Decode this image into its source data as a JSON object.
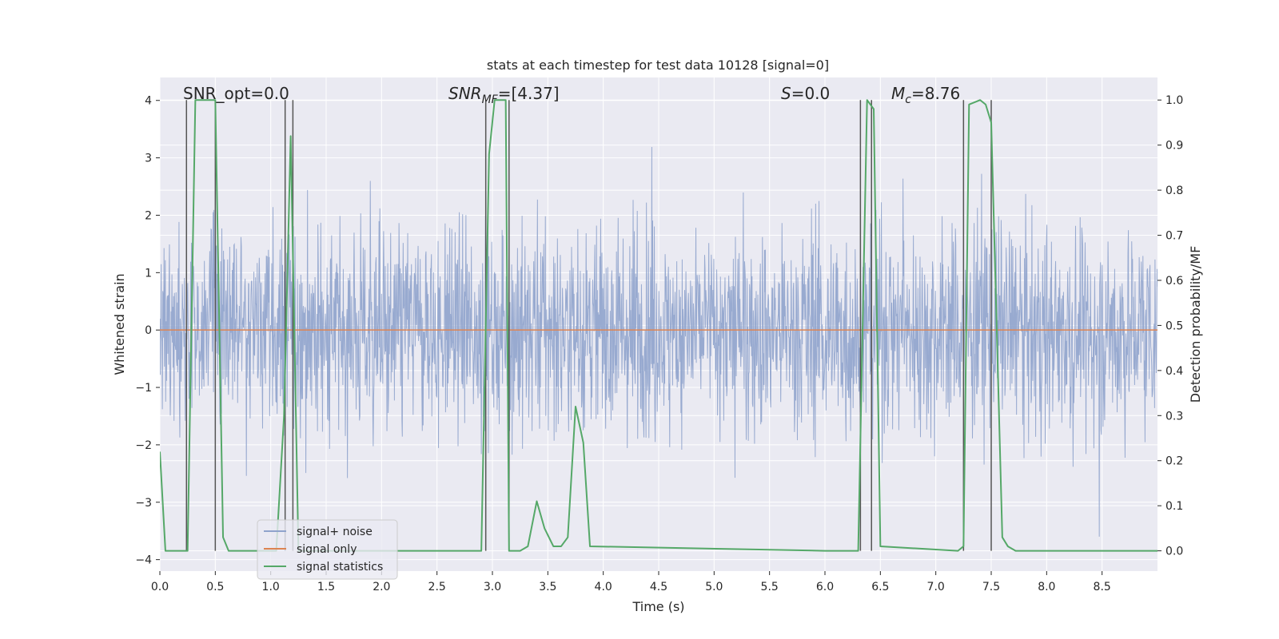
{
  "chart_data": {
    "type": "line",
    "title": "stats at each timestep for test data 10128 [signal=0]",
    "xlabel": "Time (s)",
    "ylabel": "Whitened strain",
    "y2label": "Detection probability/MF",
    "xlim": [
      0.0,
      9.0
    ],
    "ylim": [
      -4.2,
      4.4
    ],
    "y2lim": [
      -0.045,
      1.05
    ],
    "xticks": [
      "0.0",
      "0.5",
      "1.0",
      "1.5",
      "2.0",
      "2.5",
      "3.0",
      "3.5",
      "4.0",
      "4.5",
      "5.0",
      "5.5",
      "6.0",
      "6.5",
      "7.0",
      "7.5",
      "8.0",
      "8.5"
    ],
    "yticks": [
      "4",
      "3",
      "2",
      "1",
      "0",
      "−1",
      "−2",
      "−3",
      "−4"
    ],
    "y2ticks": [
      "1.0",
      "0.9",
      "0.8",
      "0.7",
      "0.6",
      "0.5",
      "0.4",
      "0.3",
      "0.2",
      "0.1",
      "0.0"
    ],
    "grid": true,
    "legend_position": "lower-left",
    "annotations": {
      "snr_opt": "SNR_opt=0.0",
      "snr_mf_base": "SNR",
      "snr_mf_sub": "MF",
      "snr_mf_value": "=[4.37]",
      "s_symbol": "S",
      "s_value": "=0.0",
      "mc_base": "M",
      "mc_sub": "c",
      "mc_value": "=8.76"
    },
    "series": [
      {
        "name": "signal+ noise",
        "color": "#8fa3cc",
        "description": "whitened strain noise, roughly in [-3.5, 3.5]"
      },
      {
        "name": "signal only",
        "color": "#dd8452",
        "x": [
          0.0,
          9.0
        ],
        "values": [
          0.0,
          0.0
        ]
      },
      {
        "name": "signal statistics",
        "color": "#55a868",
        "axis": "right",
        "x": [
          0.0,
          0.05,
          0.25,
          0.32,
          0.45,
          0.5,
          0.57,
          0.62,
          1.05,
          1.12,
          1.18,
          1.25,
          1.32,
          2.9,
          2.97,
          3.02,
          3.12,
          3.15,
          3.25,
          3.32,
          3.4,
          3.47,
          3.55,
          3.62,
          3.68,
          3.75,
          3.82,
          3.88,
          6.0,
          6.3,
          6.38,
          6.44,
          6.5,
          7.2,
          7.25,
          7.3,
          7.4,
          7.45,
          7.5,
          7.6,
          7.65,
          7.72,
          9.0
        ],
        "values": [
          0.22,
          0.0,
          0.0,
          1.0,
          1.0,
          1.0,
          0.03,
          0.0,
          0.0,
          0.3,
          0.92,
          0.0,
          0.0,
          0.0,
          0.88,
          1.0,
          1.0,
          0.0,
          0.0,
          0.01,
          0.11,
          0.05,
          0.01,
          0.01,
          0.03,
          0.32,
          0.24,
          0.01,
          0.0,
          0.0,
          1.0,
          0.98,
          0.01,
          0.0,
          0.01,
          0.99,
          1.0,
          0.99,
          0.95,
          0.03,
          0.01,
          0.0,
          0.0
        ]
      }
    ],
    "event_markers": {
      "color": "#555555",
      "times": [
        0.24,
        0.5,
        1.13,
        1.2,
        2.94,
        3.15,
        6.32,
        6.42,
        7.25,
        7.5
      ]
    }
  }
}
